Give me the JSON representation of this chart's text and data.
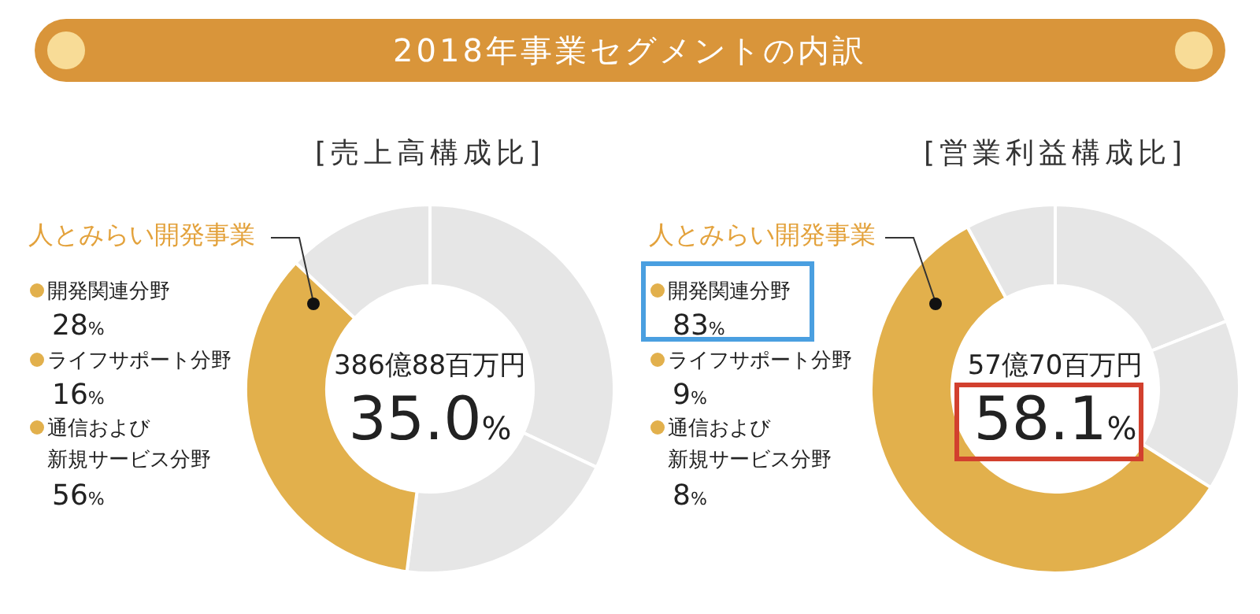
{
  "chart_data": [
    {
      "type": "donut",
      "title": "2018年事業セグメントの内訳",
      "subtitle": "[売上高構成比]",
      "categories": [
        null,
        null,
        "人とみらい開発事業",
        null
      ],
      "values": [
        32,
        20,
        35.0,
        13
      ],
      "colors": [
        "#e6e6e6",
        "#e6e6e6",
        "#e2b04c",
        "#e6e6e6"
      ],
      "value_labels": [
        null,
        null,
        "35.0%",
        null
      ],
      "annotations": [
        "386億88百万円",
        "開発関連分野",
        "28%",
        "ライフサポート分野",
        "16%",
        "通信および",
        "新規サービス分野",
        "56%"
      ]
    },
    {
      "type": "donut",
      "subtitle": "[営業利益構成比]",
      "categories": [
        null,
        null,
        "人とみらい開発事業",
        null
      ],
      "values": [
        19,
        15,
        58.1,
        7.9
      ],
      "colors": [
        "#e6e6e6",
        "#e6e6e6",
        "#e2b04c",
        "#e6e6e6"
      ],
      "value_labels": [
        null,
        null,
        "58.1%",
        null
      ],
      "annotations": [
        "57億70百万円",
        "開発関連分野",
        "83%",
        "ライフサポート分野",
        "9%",
        "通信および",
        "新規サービス分野",
        "8%"
      ]
    }
  ]
}
